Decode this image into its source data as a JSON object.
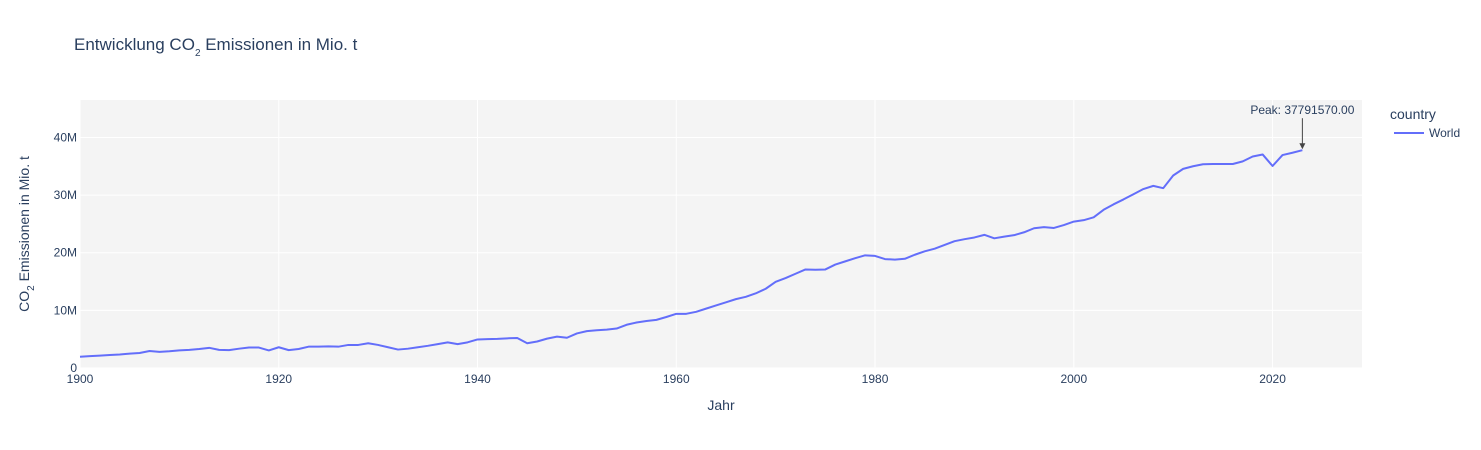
{
  "chart_data": {
    "type": "line",
    "title_prefix": "Entwicklung CO",
    "title_sub": "2",
    "title_suffix": " Emissionen in Mio. t",
    "xlabel": "Jahr",
    "ylabel_prefix": "CO",
    "ylabel_sub": "2",
    "ylabel_suffix": " Emissionen in Mio. t",
    "xlim": [
      1900,
      2029
    ],
    "ylim": [
      0,
      46500000
    ],
    "x_ticks": [
      1900,
      1920,
      1940,
      1960,
      1980,
      2000,
      2020
    ],
    "y_ticks": [
      {
        "value": 0,
        "label": "0"
      },
      {
        "value": 10000000,
        "label": "10M"
      },
      {
        "value": 20000000,
        "label": "20M"
      },
      {
        "value": 30000000,
        "label": "30M"
      },
      {
        "value": 40000000,
        "label": "40M"
      }
    ],
    "grid": true,
    "legend": {
      "title": "country",
      "placement": "right"
    },
    "series": [
      {
        "name": "World",
        "color": "#636efa",
        "x": [
          1900,
          1901,
          1902,
          1903,
          1904,
          1905,
          1906,
          1907,
          1908,
          1909,
          1910,
          1911,
          1912,
          1913,
          1914,
          1915,
          1916,
          1917,
          1918,
          1919,
          1920,
          1921,
          1922,
          1923,
          1924,
          1925,
          1926,
          1927,
          1928,
          1929,
          1930,
          1931,
          1932,
          1933,
          1934,
          1935,
          1936,
          1937,
          1938,
          1939,
          1940,
          1941,
          1942,
          1943,
          1944,
          1945,
          1946,
          1947,
          1948,
          1949,
          1950,
          1951,
          1952,
          1953,
          1954,
          1955,
          1956,
          1957,
          1958,
          1959,
          1960,
          1961,
          1962,
          1963,
          1964,
          1965,
          1966,
          1967,
          1968,
          1969,
          1970,
          1971,
          1972,
          1973,
          1974,
          1975,
          1976,
          1977,
          1978,
          1979,
          1980,
          1981,
          1982,
          1983,
          1984,
          1985,
          1986,
          1987,
          1988,
          1989,
          1990,
          1991,
          1992,
          1993,
          1994,
          1995,
          1996,
          1997,
          1998,
          1999,
          2000,
          2001,
          2002,
          2003,
          2004,
          2005,
          2006,
          2007,
          2008,
          2009,
          2010,
          2011,
          2012,
          2013,
          2014,
          2015,
          2016,
          2017,
          2018,
          2019,
          2020,
          2021,
          2022,
          2023
        ],
        "y": [
          1950000,
          2050000,
          2150000,
          2250000,
          2350000,
          2500000,
          2600000,
          2950000,
          2800000,
          2900000,
          3050000,
          3150000,
          3300000,
          3500000,
          3150000,
          3100000,
          3350000,
          3550000,
          3550000,
          3050000,
          3600000,
          3100000,
          3300000,
          3700000,
          3700000,
          3750000,
          3700000,
          4000000,
          4000000,
          4300000,
          4000000,
          3600000,
          3200000,
          3350000,
          3600000,
          3850000,
          4150000,
          4450000,
          4150000,
          4450000,
          4950000,
          5000000,
          5050000,
          5150000,
          5200000,
          4300000,
          4600000,
          5100000,
          5450000,
          5250000,
          6000000,
          6400000,
          6550000,
          6650000,
          6850000,
          7500000,
          7900000,
          8150000,
          8350000,
          8850000,
          9400000,
          9400000,
          9750000,
          10300000,
          10850000,
          11400000,
          11950000,
          12350000,
          12950000,
          13750000,
          14950000,
          15600000,
          16350000,
          17100000,
          17050000,
          17100000,
          17950000,
          18500000,
          19050000,
          19550000,
          19450000,
          18900000,
          18800000,
          18950000,
          19650000,
          20250000,
          20700000,
          21350000,
          22000000,
          22350000,
          22650000,
          23100000,
          22500000,
          22800000,
          23050000,
          23550000,
          24250000,
          24450000,
          24300000,
          24800000,
          25400000,
          25650000,
          26150000,
          27450000,
          28400000,
          29250000,
          30150000,
          31050000,
          31600000,
          31200000,
          33400000,
          34550000,
          35000000,
          35350000,
          35400000,
          35400000,
          35400000,
          35850000,
          36700000,
          37050000,
          35050000,
          36950000,
          37350000,
          37791570
        ]
      }
    ],
    "annotation": {
      "text": "Peak: 37791570.00",
      "x": 2023,
      "y": 37791570
    }
  }
}
